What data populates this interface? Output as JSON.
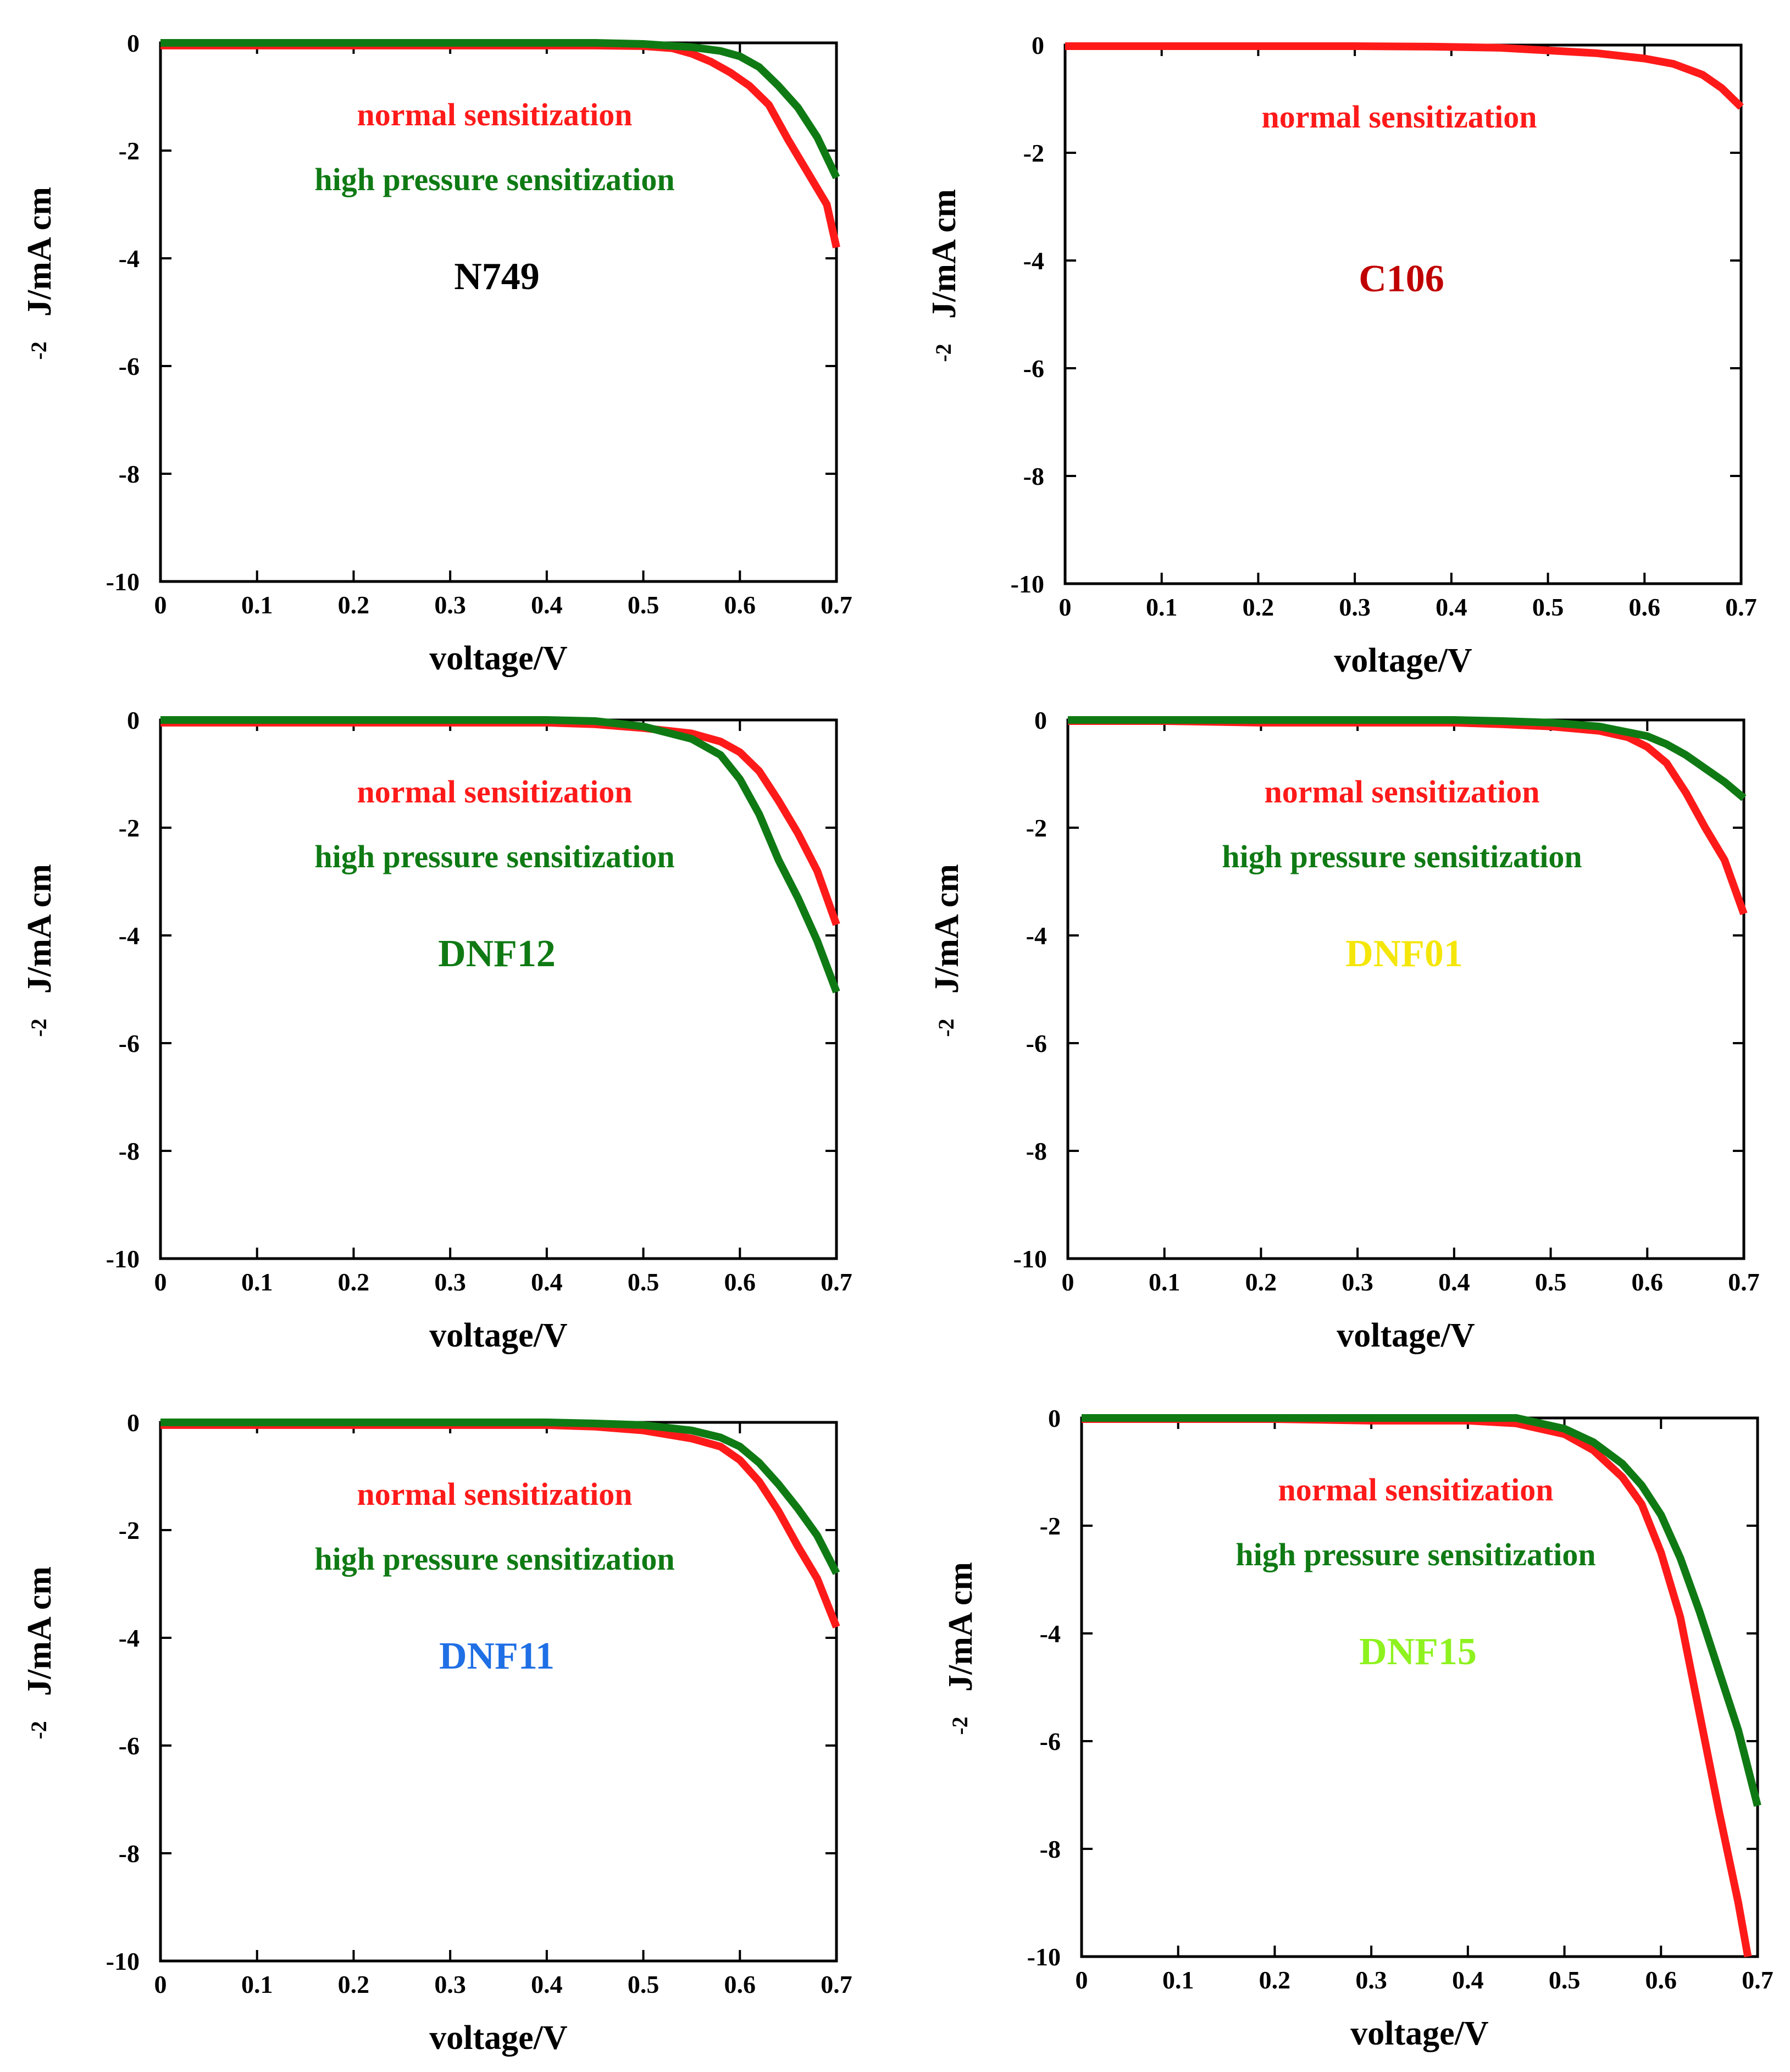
{
  "colors": {
    "normal": "#ff1a1a",
    "high": "#0f7a14",
    "axis": "#000000"
  },
  "chart_data": [
    {
      "type": "line",
      "dye_label": "N749",
      "dye_color": "#000000",
      "xlabel": "voltage/V",
      "ylabel_main": "J/mA cm",
      "ylabel_sup": "-2",
      "xlim": [
        0,
        0.7
      ],
      "ylim": [
        -10,
        0
      ],
      "xticks": [
        "0",
        "0.1",
        "0.2",
        "0.3",
        "0.4",
        "0.5",
        "0.6",
        "0.7"
      ],
      "yticks": [
        "0",
        "-2",
        "-4",
        "-6",
        "-8",
        "-10"
      ],
      "legend": [
        "normal sensitization",
        "high pressure sensitization"
      ],
      "series": [
        {
          "name": "normal sensitization",
          "color": "#ff1a1a",
          "x": [
            0,
            0.1,
            0.2,
            0.3,
            0.4,
            0.45,
            0.5,
            0.53,
            0.55,
            0.57,
            0.59,
            0.61,
            0.63,
            0.65,
            0.67,
            0.69,
            0.7
          ],
          "y": [
            -0.05,
            -0.05,
            -0.05,
            -0.05,
            -0.05,
            -0.05,
            -0.06,
            -0.1,
            -0.2,
            -0.35,
            -0.55,
            -0.8,
            -1.15,
            -1.8,
            -2.4,
            -3.0,
            -3.8
          ]
        },
        {
          "name": "high pressure sensitization",
          "color": "#0f7a14",
          "x": [
            0,
            0.1,
            0.2,
            0.3,
            0.4,
            0.45,
            0.5,
            0.55,
            0.58,
            0.6,
            0.62,
            0.64,
            0.66,
            0.68,
            0.7
          ],
          "y": [
            0.0,
            0.0,
            0.0,
            0.0,
            0.0,
            0.0,
            -0.02,
            -0.08,
            -0.15,
            -0.25,
            -0.45,
            -0.8,
            -1.2,
            -1.75,
            -2.5
          ]
        }
      ]
    },
    {
      "type": "line",
      "dye_label": "C106",
      "dye_color": "#c00000",
      "xlabel": "voltage/V",
      "ylabel_main": "J/mA cm",
      "ylabel_sup": "-2",
      "xlim": [
        0,
        0.7
      ],
      "ylim": [
        -10,
        0
      ],
      "xticks": [
        "0",
        "0.1",
        "0.2",
        "0.3",
        "0.4",
        "0.5",
        "0.6",
        "0.7"
      ],
      "yticks": [
        "0",
        "-2",
        "-4",
        "-6",
        "-8",
        "-10"
      ],
      "legend": [
        "normal sensitization"
      ],
      "series": [
        {
          "name": "normal sensitization",
          "color": "#ff1a1a",
          "x": [
            0,
            0.1,
            0.2,
            0.3,
            0.38,
            0.45,
            0.5,
            0.55,
            0.6,
            0.63,
            0.66,
            0.68,
            0.7
          ],
          "y": [
            -0.02,
            -0.02,
            -0.02,
            -0.02,
            -0.03,
            -0.05,
            -0.1,
            -0.15,
            -0.25,
            -0.35,
            -0.55,
            -0.8,
            -1.15
          ]
        }
      ]
    },
    {
      "type": "line",
      "dye_label": "DNF12",
      "dye_color": "#0f7a14",
      "xlabel": "voltage/V",
      "ylabel_main": "J/mA cm",
      "ylabel_sup": "-2",
      "xlim": [
        0,
        0.7
      ],
      "ylim": [
        -10,
        0
      ],
      "xticks": [
        "0",
        "0.1",
        "0.2",
        "0.3",
        "0.4",
        "0.5",
        "0.6",
        "0.7"
      ],
      "yticks": [
        "0",
        "-2",
        "-4",
        "-6",
        "-8",
        "-10"
      ],
      "legend": [
        "normal sensitization",
        "high pressure sensitization"
      ],
      "series": [
        {
          "name": "normal sensitization",
          "color": "#ff1a1a",
          "x": [
            0,
            0.1,
            0.2,
            0.3,
            0.4,
            0.45,
            0.5,
            0.55,
            0.58,
            0.6,
            0.62,
            0.64,
            0.66,
            0.68,
            0.7
          ],
          "y": [
            -0.05,
            -0.05,
            -0.05,
            -0.05,
            -0.05,
            -0.08,
            -0.15,
            -0.25,
            -0.4,
            -0.6,
            -0.95,
            -1.5,
            -2.1,
            -2.8,
            -3.8
          ]
        },
        {
          "name": "high pressure sensitization",
          "color": "#0f7a14",
          "x": [
            0,
            0.1,
            0.2,
            0.3,
            0.4,
            0.45,
            0.5,
            0.55,
            0.58,
            0.6,
            0.62,
            0.64,
            0.66,
            0.68,
            0.7
          ],
          "y": [
            0.0,
            0.0,
            0.0,
            0.0,
            0.0,
            -0.02,
            -0.12,
            -0.35,
            -0.65,
            -1.1,
            -1.75,
            -2.6,
            -3.3,
            -4.1,
            -5.05
          ]
        }
      ]
    },
    {
      "type": "line",
      "dye_label": "DNF01",
      "dye_color": "#f5e60a",
      "xlabel": "voltage/V",
      "ylabel_main": "J/mA cm",
      "ylabel_sup": "-2",
      "xlim": [
        0,
        0.7
      ],
      "ylim": [
        -10,
        0
      ],
      "xticks": [
        "0",
        "0.1",
        "0.2",
        "0.3",
        "0.4",
        "0.5",
        "0.6",
        "0.7"
      ],
      "yticks": [
        "0",
        "-2",
        "-4",
        "-6",
        "-8",
        "-10"
      ],
      "legend": [
        "normal sensitization",
        "high pressure sensitization"
      ],
      "series": [
        {
          "name": "normal sensitization",
          "color": "#ff1a1a",
          "x": [
            0,
            0.1,
            0.2,
            0.3,
            0.4,
            0.45,
            0.5,
            0.55,
            0.58,
            0.6,
            0.62,
            0.64,
            0.66,
            0.68,
            0.7
          ],
          "y": [
            -0.02,
            -0.02,
            -0.05,
            -0.05,
            -0.05,
            -0.08,
            -0.12,
            -0.2,
            -0.32,
            -0.5,
            -0.8,
            -1.35,
            -2.0,
            -2.6,
            -3.6
          ]
        },
        {
          "name": "high pressure sensitization",
          "color": "#0f7a14",
          "x": [
            0,
            0.1,
            0.2,
            0.3,
            0.4,
            0.45,
            0.5,
            0.55,
            0.6,
            0.62,
            0.64,
            0.66,
            0.68,
            0.7
          ],
          "y": [
            0.0,
            0.0,
            0.0,
            0.0,
            0.0,
            -0.02,
            -0.05,
            -0.12,
            -0.3,
            -0.45,
            -0.65,
            -0.9,
            -1.15,
            -1.45
          ]
        }
      ]
    },
    {
      "type": "line",
      "dye_label": "DNF11",
      "dye_color": "#1f6fe5",
      "xlabel": "voltage/V",
      "ylabel_main": "J/mA cm",
      "ylabel_sup": "-2",
      "xlim": [
        0,
        0.7
      ],
      "ylim": [
        -10,
        0
      ],
      "xticks": [
        "0",
        "0.1",
        "0.2",
        "0.3",
        "0.4",
        "0.5",
        "0.6",
        "0.7"
      ],
      "yticks": [
        "0",
        "-2",
        "-4",
        "-6",
        "-8",
        "-10"
      ],
      "legend": [
        "normal sensitization",
        "high pressure sensitization"
      ],
      "series": [
        {
          "name": "normal sensitization",
          "color": "#ff1a1a",
          "x": [
            0,
            0.1,
            0.2,
            0.3,
            0.4,
            0.45,
            0.5,
            0.55,
            0.58,
            0.6,
            0.62,
            0.64,
            0.66,
            0.68,
            0.7
          ],
          "y": [
            -0.05,
            -0.05,
            -0.05,
            -0.05,
            -0.05,
            -0.08,
            -0.15,
            -0.3,
            -0.45,
            -0.7,
            -1.1,
            -1.65,
            -2.3,
            -2.9,
            -3.8
          ]
        },
        {
          "name": "high pressure sensitization",
          "color": "#0f7a14",
          "x": [
            0,
            0.1,
            0.2,
            0.3,
            0.4,
            0.45,
            0.5,
            0.55,
            0.58,
            0.6,
            0.62,
            0.64,
            0.66,
            0.68,
            0.7
          ],
          "y": [
            0.0,
            0.0,
            0.0,
            0.0,
            0.0,
            -0.02,
            -0.05,
            -0.15,
            -0.28,
            -0.45,
            -0.75,
            -1.15,
            -1.6,
            -2.1,
            -2.8
          ]
        }
      ]
    },
    {
      "type": "line",
      "dye_label": "DNF15",
      "dye_color": "#8ef21f",
      "xlabel": "voltage/V",
      "ylabel_main": "J/mA cm",
      "ylabel_sup": "-2",
      "xlim": [
        0,
        0.7
      ],
      "ylim": [
        -10,
        0
      ],
      "xticks": [
        "0",
        "0.1",
        "0.2",
        "0.3",
        "0.4",
        "0.5",
        "0.6",
        "0.7"
      ],
      "yticks": [
        "0",
        "-2",
        "-4",
        "-6",
        "-8",
        "-10"
      ],
      "legend": [
        "normal sensitization",
        "high pressure sensitization"
      ],
      "series": [
        {
          "name": "normal sensitization",
          "color": "#ff1a1a",
          "x": [
            0,
            0.1,
            0.2,
            0.3,
            0.4,
            0.45,
            0.5,
            0.53,
            0.56,
            0.58,
            0.6,
            0.62,
            0.64,
            0.66,
            0.68,
            0.69
          ],
          "y": [
            -0.02,
            -0.02,
            -0.02,
            -0.05,
            -0.05,
            -0.1,
            -0.3,
            -0.6,
            -1.1,
            -1.6,
            -2.5,
            -3.7,
            -5.5,
            -7.3,
            -9.0,
            -10.0
          ]
        },
        {
          "name": "high pressure sensitization",
          "color": "#0f7a14",
          "x": [
            0,
            0.1,
            0.2,
            0.3,
            0.4,
            0.45,
            0.5,
            0.53,
            0.56,
            0.58,
            0.6,
            0.62,
            0.64,
            0.66,
            0.68,
            0.7
          ],
          "y": [
            0.0,
            0.0,
            0.0,
            0.0,
            0.0,
            0.0,
            -0.2,
            -0.45,
            -0.85,
            -1.25,
            -1.8,
            -2.6,
            -3.6,
            -4.7,
            -5.8,
            -7.2
          ]
        }
      ]
    }
  ]
}
